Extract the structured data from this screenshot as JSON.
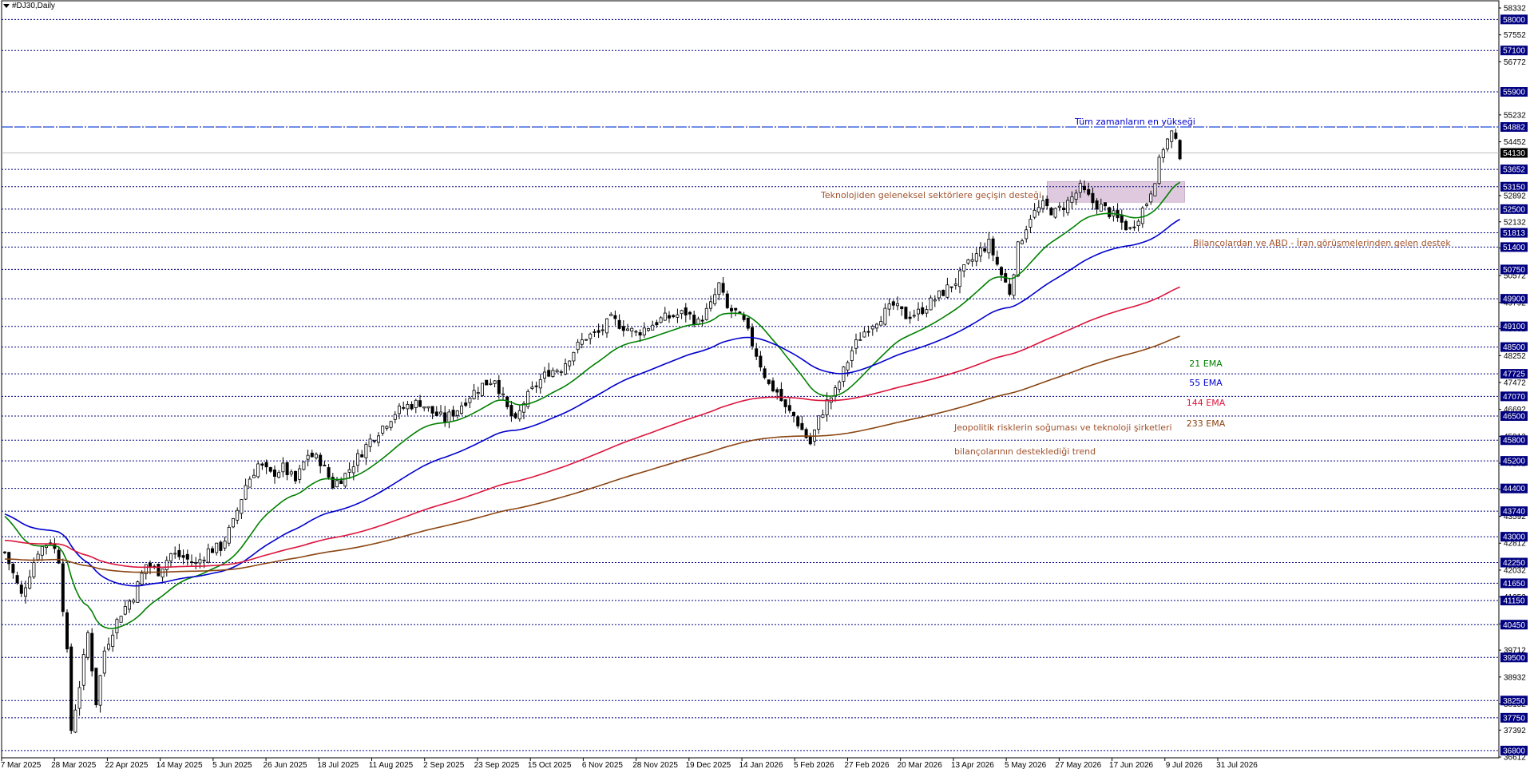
{
  "window": {
    "title": "#DJ30,Daily",
    "menu_icon": "triangle-down-icon"
  },
  "chart_data": {
    "type": "candlestick",
    "symbol": "#DJ30",
    "timeframe": "Daily",
    "ylim": [
      36612,
      58332
    ],
    "y_tick_labels": [
      58332,
      57552,
      56772,
      55232,
      54452,
      52892,
      52132,
      51372,
      50572,
      49792,
      49032,
      48252,
      47472,
      46692,
      45912,
      45132,
      44372,
      43592,
      42812,
      42032,
      41252,
      40472,
      39712,
      38932,
      38152,
      37392,
      36612
    ],
    "x_tick_labels": [
      "7 Mar 2025",
      "28 Mar 2025",
      "22 Apr 2025",
      "14 May 2025",
      "5 Jun 2025",
      "26 Jun 2025",
      "18 Jul 2025",
      "11 Aug 2025",
      "2 Sep 2025",
      "23 Sep 2025",
      "15 Oct 2025",
      "6 Nov 2025",
      "28 Nov 2025",
      "19 Dec 2025",
      "14 Jan 2026",
      "5 Feb 2026",
      "27 Feb 2026",
      "20 Mar 2026",
      "13 Apr 2026",
      "5 May 2026",
      "27 May 2026",
      "17 Jun 2026",
      "9 Jul 2026",
      "31 Jul 2026"
    ],
    "horizontal_levels": [
      58000,
      57100,
      55900,
      54882,
      53652,
      53150,
      52500,
      51813,
      51400,
      50750,
      49900,
      49100,
      48500,
      47725,
      47070,
      46500,
      45800,
      45200,
      44400,
      43740,
      43000,
      42250,
      41650,
      41150,
      40450,
      39500,
      38250,
      37750,
      36800
    ],
    "current_price": 54130,
    "all_time_high": 54882,
    "close_path": [
      [
        0,
        42550
      ],
      [
        4,
        41300
      ],
      [
        8,
        42600
      ],
      [
        11,
        42900
      ],
      [
        13,
        42350
      ],
      [
        15,
        39600
      ],
      [
        16,
        37400
      ],
      [
        18,
        38700
      ],
      [
        20,
        40200
      ],
      [
        22,
        38200
      ],
      [
        24,
        39700
      ],
      [
        26,
        40300
      ],
      [
        28,
        40800
      ],
      [
        31,
        41300
      ],
      [
        34,
        42200
      ],
      [
        37,
        42000
      ],
      [
        40,
        42500
      ],
      [
        43,
        42400
      ],
      [
        46,
        42200
      ],
      [
        49,
        42600
      ],
      [
        52,
        42700
      ],
      [
        55,
        43400
      ],
      [
        58,
        44500
      ],
      [
        61,
        45100
      ],
      [
        64,
        44800
      ],
      [
        67,
        45000
      ],
      [
        70,
        44600
      ],
      [
        73,
        45400
      ],
      [
        76,
        45200
      ],
      [
        79,
        44500
      ],
      [
        82,
        44800
      ],
      [
        85,
        45300
      ],
      [
        88,
        45800
      ],
      [
        91,
        46200
      ],
      [
        94,
        46600
      ],
      [
        97,
        46800
      ],
      [
        100,
        46900
      ],
      [
        103,
        46600
      ],
      [
        106,
        46400
      ],
      [
        109,
        46700
      ],
      [
        112,
        47100
      ],
      [
        115,
        47400
      ],
      [
        118,
        47600
      ],
      [
        121,
        46700
      ],
      [
        123,
        46300
      ],
      [
        125,
        46900
      ],
      [
        128,
        47400
      ],
      [
        131,
        47800
      ],
      [
        134,
        47900
      ],
      [
        137,
        48400
      ],
      [
        140,
        48800
      ],
      [
        143,
        48900
      ],
      [
        146,
        49300
      ],
      [
        149,
        49100
      ],
      [
        152,
        48900
      ],
      [
        155,
        49100
      ],
      [
        158,
        49300
      ],
      [
        161,
        49400
      ],
      [
        164,
        49500
      ],
      [
        167,
        49200
      ],
      [
        170,
        49700
      ],
      [
        172,
        50300
      ],
      [
        174,
        49600
      ],
      [
        176,
        49500
      ],
      [
        178,
        49200
      ],
      [
        180,
        48600
      ],
      [
        182,
        48000
      ],
      [
        184,
        47400
      ],
      [
        186,
        47200
      ],
      [
        188,
        46700
      ],
      [
        190,
        46500
      ],
      [
        192,
        46100
      ],
      [
        194,
        45700
      ],
      [
        196,
        46400
      ],
      [
        198,
        46900
      ],
      [
        200,
        47200
      ],
      [
        202,
        47800
      ],
      [
        204,
        48400
      ],
      [
        206,
        48800
      ],
      [
        208,
        49100
      ],
      [
        211,
        49400
      ],
      [
        214,
        49700
      ],
      [
        217,
        49400
      ],
      [
        220,
        49500
      ],
      [
        223,
        49800
      ],
      [
        226,
        50100
      ],
      [
        229,
        50400
      ],
      [
        232,
        50900
      ],
      [
        235,
        51300
      ],
      [
        237,
        51500
      ],
      [
        240,
        50600
      ],
      [
        242,
        50100
      ],
      [
        244,
        51400
      ],
      [
        247,
        52300
      ],
      [
        250,
        52600
      ],
      [
        253,
        52400
      ],
      [
        256,
        52700
      ],
      [
        259,
        53100
      ],
      [
        262,
        52700
      ],
      [
        265,
        52500
      ],
      [
        268,
        52200
      ],
      [
        271,
        51900
      ],
      [
        273,
        52300
      ],
      [
        275,
        52700
      ],
      [
        277,
        53400
      ],
      [
        279,
        54300
      ],
      [
        281,
        54700
      ],
      [
        283,
        54100
      ]
    ],
    "series": [
      {
        "name": "21 EMA",
        "color": "#008000"
      },
      {
        "name": "55 EMA",
        "color": "#0000cd"
      },
      {
        "name": "144 EMA",
        "color": "#dc143c"
      },
      {
        "name": "233 EMA",
        "color": "#8b4513"
      }
    ],
    "ema_start_values": {
      "ema21": 43700,
      "ema55": 43700,
      "ema144": 42900,
      "ema233": 42350
    },
    "annotations": {
      "ath": "Tüm zamanların en yükseği",
      "support1": "Teknolojiden geleneksel sektörlere geçişin desteği",
      "support2": "Bilançolardan ve ABD - İran görüşmelerinden gelen destek",
      "trend_line1": "Jeopolitik risklerin soğuması ve teknoloji şirketleri",
      "trend_line2": "bilançolarının desteklediği trend"
    },
    "highlight_zone": {
      "from": 52700,
      "to": 53300
    },
    "colors": {
      "level_line": "#000080",
      "level_label_bg": "#000080",
      "current_label_bg": "#000000",
      "ath_line": "#4169e1",
      "zone": "#d8bfd8",
      "annotation": "#a0522d",
      "ath_text": "#0000cd",
      "candle": "#000000"
    }
  }
}
